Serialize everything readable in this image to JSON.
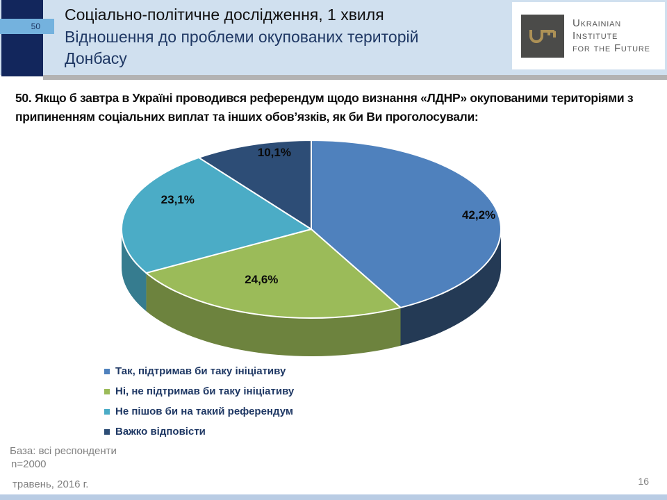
{
  "slide": {
    "number_tab": "50",
    "title": "Соціально-політичне дослідження, 1 хвиля",
    "subtitle": "Відношення до проблеми окупованих територій Донбасу",
    "logo": {
      "icon": "key-icon",
      "line1": "Ukrainian",
      "line2": "Institute",
      "line3": "for the Future"
    },
    "question": "50. Якщо б завтра в Україні проводився референдум щодо визнання «ЛДНР» окупованими територіями з припиненням соціальних виплат та інших обов’язків, як би Ви проголосували:",
    "footer": {
      "base_line1": "База: всі респонденти",
      "base_line2": "n=2000",
      "date": "травень, 2016 г.",
      "page_number": "16"
    }
  },
  "chart_data": {
    "type": "pie",
    "style": "3d",
    "start_angle_deg": -90,
    "direction": "clockwise",
    "legend_position": "bottom-left",
    "labels": [
      "Так, підтримав би таку ініціативу",
      "Ні, не  підтримав би таку ініціативу",
      "Не пішов би на такий референдум",
      "Важко відповісти"
    ],
    "values": [
      42.2,
      24.6,
      23.1,
      10.1
    ],
    "value_labels": [
      "42,2%",
      "24,6%",
      "23,1%",
      "10,1%"
    ],
    "colors": [
      "#4f81bd",
      "#9bbb59",
      "#4bacc6",
      "#2d4d76"
    ]
  }
}
